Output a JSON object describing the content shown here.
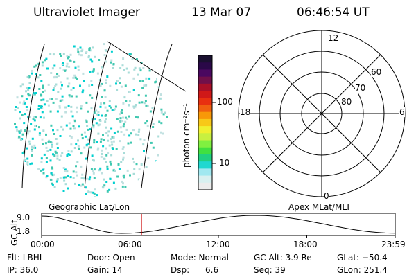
{
  "header": {
    "instrument": "Ultraviolet Imager",
    "date": "13 Mar 07",
    "time": "06:46:54 UT"
  },
  "colorbar": {
    "unit_label": "photon cm⁻²s⁻¹",
    "ticks": [
      "100",
      "10"
    ],
    "colors": [
      "#1a1030",
      "#2a0848",
      "#4a0860",
      "#70104a",
      "#a81028",
      "#d01818",
      "#e83010",
      "#f06010",
      "#f89808",
      "#f8c818",
      "#f0f030",
      "#c8f040",
      "#80f040",
      "#40e040",
      "#20d080",
      "#20d8d0",
      "#a0e8f0",
      "#d8f0f0",
      "#ececec"
    ]
  },
  "left_panel": {
    "grid_color": "#000000",
    "dot_colors": [
      "#00d0d0",
      "#a8dcd8",
      "#40c8b0",
      "#c0e0e0"
    ]
  },
  "polar_plot": {
    "mlt_labels": {
      "top": "12",
      "bottom": "0",
      "left": "18",
      "right": "6"
    },
    "lat_labels": [
      "60",
      "70",
      "80"
    ]
  },
  "timeline": {
    "left_title": "Geographic Lat/Lon",
    "right_title": "Apex  MLat/MLT",
    "axis_label": "GC Alt",
    "y_ticks": [
      "9.0",
      "1.8"
    ],
    "x_ticks": [
      "00:00",
      "06:00",
      "12:00",
      "18:00",
      "23:59"
    ],
    "marker_color": "#cc0000",
    "marker_fraction": 0.2826,
    "altitude_series": [
      {
        "t": 0.0,
        "alt": 9.0
      },
      {
        "t": 5.4,
        "alt": 1.8
      },
      {
        "t": 14.5,
        "alt": 9.3
      },
      {
        "t": 23.98,
        "alt": 1.9
      }
    ]
  },
  "info": {
    "flt": "Flt: LBHL",
    "ip": "IP: 36.0",
    "door": "Door: Open",
    "gain": "Gain: 14",
    "mode": "Mode: Normal",
    "dsp": "Dsp:      6.6",
    "gc_alt": "GC Alt: 3.9 Re",
    "seq": "Seq: 39",
    "glat": "GLat: −50.4",
    "glon": "GLon: 251.4"
  }
}
